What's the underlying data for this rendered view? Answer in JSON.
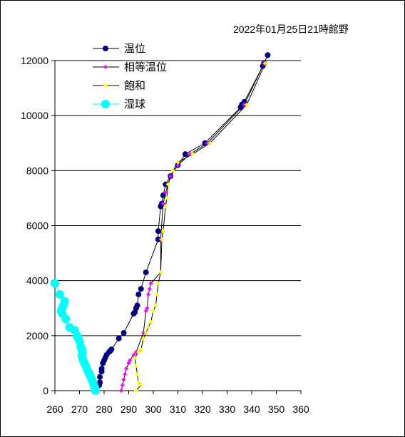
{
  "chart_data": {
    "type": "scatter",
    "title": "2022年01月25日21時館野",
    "xlim": [
      260,
      360
    ],
    "ylim": [
      0,
      12000
    ],
    "xticks": [
      "260",
      "270",
      "280",
      "290",
      "300",
      "310",
      "320",
      "330",
      "340",
      "350",
      "360"
    ],
    "yticks": [
      "0",
      "2000",
      "4000",
      "6000",
      "8000",
      "10000",
      "12000"
    ],
    "grid": "horizontal",
    "legend_position": "top-left",
    "colors": {
      "temp": "#000080",
      "equiv": "#ff00ff",
      "sat": "#ffff00",
      "wet": "#00ffff",
      "line": "#000000"
    },
    "series": [
      {
        "name": "温位",
        "key": "temp",
        "marker": "circle",
        "x": [
          276.5,
          277,
          278,
          278.3,
          278.3,
          279,
          279,
          279.5,
          280,
          280.5,
          281,
          282,
          282.5,
          283,
          286,
          288,
          292,
          292.5,
          293,
          293.5,
          294,
          295,
          297,
          302,
          302,
          303,
          303.5,
          304,
          305,
          307,
          310,
          313,
          321,
          335.5,
          336,
          337,
          344.5,
          345,
          346.5
        ],
        "y": [
          0,
          100,
          200,
          300,
          500,
          700,
          800,
          1000,
          1100,
          1200,
          1300,
          1400,
          1450,
          1500,
          1900,
          2100,
          2800,
          2850,
          3000,
          3100,
          3500,
          3700,
          4300,
          5500,
          5800,
          6700,
          6800,
          7100,
          7500,
          7800,
          8200,
          8600,
          9000,
          10300,
          10400,
          10500,
          11800,
          11900,
          12200
        ]
      },
      {
        "name": "相等温位",
        "key": "equiv",
        "marker": "diamond",
        "x": [
          287,
          287.5,
          288,
          288.5,
          289,
          290,
          290.5,
          292,
          293,
          296,
          297,
          297.5,
          298,
          298.5,
          299,
          303,
          303,
          304,
          305,
          306,
          307,
          310,
          315,
          322,
          337,
          345
        ],
        "y": [
          0,
          200,
          400,
          600,
          800,
          1000,
          1100,
          1300,
          1400,
          2100,
          2900,
          3000,
          3500,
          3700,
          3900,
          4300,
          5500,
          6800,
          7200,
          7500,
          7800,
          8200,
          8600,
          9000,
          10400,
          11900
        ]
      },
      {
        "name": "飽和",
        "key": "sat",
        "marker": "diamond",
        "x": [
          293,
          295,
          294,
          293.5,
          293,
          292.5,
          294,
          295,
          296,
          297,
          298,
          299,
          300,
          301,
          301.5,
          302,
          303,
          303.5,
          304,
          305,
          305.5,
          306,
          308,
          310,
          316,
          323,
          338,
          345.5
        ],
        "y": [
          0,
          200,
          300,
          600,
          900,
          1200,
          1400,
          1500,
          1900,
          2100,
          2300,
          2500,
          2900,
          3100,
          3500,
          3900,
          4300,
          5500,
          5800,
          6700,
          7000,
          7500,
          8000,
          8300,
          8600,
          9000,
          10400,
          11900
        ]
      },
      {
        "name": "湿球",
        "key": "wet",
        "marker": "circle",
        "x": [
          276.5,
          276.3,
          276,
          275.8,
          275.5,
          275,
          274.8,
          274.3,
          274,
          273.5,
          273,
          272.5,
          272,
          271.5,
          271.2,
          271,
          271.2,
          271,
          270.5,
          270,
          269.5,
          269,
          268,
          266,
          264.5,
          263,
          262.5,
          263,
          263.5,
          264,
          262,
          260
        ],
        "y": [
          0,
          100,
          150,
          200,
          300,
          400,
          450,
          550,
          600,
          700,
          800,
          900,
          1000,
          1100,
          1200,
          1300,
          1400,
          1500,
          1600,
          1800,
          1900,
          2000,
          2200,
          2300,
          2600,
          2800,
          2900,
          3000,
          3100,
          3250,
          3500,
          3900
        ]
      }
    ]
  }
}
